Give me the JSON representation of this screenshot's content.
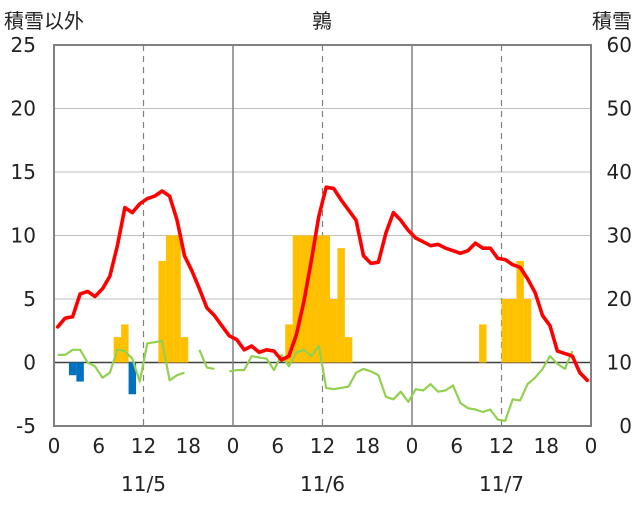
{
  "chart_data": {
    "type": "bar+line",
    "title": "鶉",
    "left_axis_label": "積雪以外",
    "right_axis_label": "積雪",
    "left_ylim": [
      -5,
      25
    ],
    "left_ticks": [
      -5,
      0,
      5,
      10,
      15,
      20,
      25
    ],
    "right_ylim": [
      0,
      60
    ],
    "right_ticks": [
      0,
      10,
      20,
      30,
      40,
      50,
      60
    ],
    "x_range_hours": [
      0,
      72
    ],
    "x_tick_labels": [
      "0",
      "6",
      "12",
      "18",
      "0",
      "6",
      "12",
      "18",
      "0",
      "6",
      "12",
      "18",
      "0"
    ],
    "x_tick_hours": [
      0,
      6,
      12,
      18,
      24,
      30,
      36,
      42,
      48,
      54,
      60,
      66,
      72
    ],
    "date_labels": [
      "11/5",
      "11/6",
      "11/7"
    ],
    "date_label_hours": [
      12,
      36,
      60
    ],
    "colors": {
      "precip_positive": "#FFC000",
      "precip_negative": "#0070C0",
      "red_line": "#FF0000",
      "green_line": "#92D050",
      "axis": "#808080"
    },
    "bars": [
      {
        "h": 2,
        "v": -1
      },
      {
        "h": 3,
        "v": -1.5
      },
      {
        "h": 8,
        "v": 2
      },
      {
        "h": 9,
        "v": 3
      },
      {
        "h": 10,
        "v": -2.5
      },
      {
        "h": 14,
        "v": 8
      },
      {
        "h": 15,
        "v": 10
      },
      {
        "h": 16,
        "v": 10
      },
      {
        "h": 17,
        "v": 2
      },
      {
        "h": 31,
        "v": 3
      },
      {
        "h": 32,
        "v": 10
      },
      {
        "h": 33,
        "v": 10
      },
      {
        "h": 34,
        "v": 10
      },
      {
        "h": 35,
        "v": 10
      },
      {
        "h": 36,
        "v": 10
      },
      {
        "h": 37,
        "v": 5
      },
      {
        "h": 38,
        "v": 9
      },
      {
        "h": 39,
        "v": 2
      },
      {
        "h": 57,
        "v": 3
      },
      {
        "h": 60,
        "v": 5
      },
      {
        "h": 61,
        "v": 5
      },
      {
        "h": 62,
        "v": 8
      },
      {
        "h": 63,
        "v": 5
      }
    ],
    "red_series": {
      "axis": "left",
      "points": [
        [
          0,
          2.8
        ],
        [
          1,
          3.5
        ],
        [
          2,
          3.6
        ],
        [
          3,
          5.4
        ],
        [
          4,
          5.6
        ],
        [
          5,
          5.2
        ],
        [
          6,
          5.8
        ],
        [
          7,
          6.8
        ],
        [
          8,
          9.2
        ],
        [
          9,
          12.2
        ],
        [
          10,
          11.8
        ],
        [
          11,
          12.5
        ],
        [
          12,
          12.9
        ],
        [
          13,
          13.1
        ],
        [
          14,
          13.5
        ],
        [
          15,
          13.1
        ],
        [
          16,
          11.2
        ],
        [
          17,
          8.4
        ],
        [
          18,
          7.2
        ],
        [
          19,
          5.8
        ],
        [
          20,
          4.3
        ],
        [
          21,
          3.7
        ],
        [
          22,
          2.9
        ],
        [
          23,
          2.1
        ],
        [
          24,
          1.8
        ],
        [
          25,
          1.0
        ],
        [
          26,
          1.3
        ],
        [
          27,
          0.8
        ],
        [
          28,
          1.0
        ],
        [
          29,
          0.9
        ],
        [
          30,
          0.2
        ],
        [
          31,
          0.5
        ],
        [
          32,
          2.2
        ],
        [
          33,
          4.8
        ],
        [
          34,
          8.0
        ],
        [
          35,
          11.5
        ],
        [
          36,
          13.8
        ],
        [
          37,
          13.7
        ],
        [
          38,
          12.8
        ],
        [
          39,
          12.0
        ],
        [
          40,
          11.2
        ],
        [
          41,
          8.4
        ],
        [
          42,
          7.8
        ],
        [
          43,
          7.9
        ],
        [
          44,
          10.2
        ],
        [
          45,
          11.8
        ],
        [
          46,
          11.2
        ],
        [
          47,
          10.4
        ],
        [
          48,
          9.8
        ],
        [
          49,
          9.5
        ],
        [
          50,
          9.2
        ],
        [
          51,
          9.3
        ],
        [
          52,
          9.0
        ],
        [
          53,
          8.8
        ],
        [
          54,
          8.6
        ],
        [
          55,
          8.8
        ],
        [
          56,
          9.4
        ],
        [
          57,
          9.0
        ],
        [
          58,
          9.0
        ],
        [
          59,
          8.2
        ],
        [
          60,
          8.1
        ],
        [
          61,
          7.7
        ],
        [
          62,
          7.5
        ],
        [
          63,
          6.6
        ],
        [
          64,
          5.5
        ],
        [
          65,
          3.7
        ],
        [
          66,
          2.9
        ],
        [
          67,
          0.9
        ],
        [
          68,
          0.7
        ],
        [
          69,
          0.5
        ],
        [
          70,
          -0.8
        ],
        [
          71,
          -1.4
        ]
      ]
    },
    "green_series": {
      "axis": "left",
      "segments": [
        [
          [
            0,
            0.6
          ],
          [
            1,
            0.6
          ],
          [
            2,
            1.0
          ],
          [
            3,
            1.0
          ],
          [
            4,
            0.0
          ],
          [
            5,
            -0.3
          ],
          [
            6,
            -1.2
          ],
          [
            7,
            -0.8
          ],
          [
            8,
            1.0
          ],
          [
            9,
            0.9
          ],
          [
            10,
            0.3
          ],
          [
            11,
            -1.5
          ],
          [
            12,
            1.5
          ],
          [
            13,
            1.6
          ],
          [
            14,
            1.7
          ],
          [
            15,
            -1.4
          ],
          [
            16,
            -1.0
          ],
          [
            17,
            -0.8
          ]
        ],
        [
          [
            19,
            1.0
          ],
          [
            20,
            -0.4
          ],
          [
            21,
            -0.5
          ]
        ],
        [
          [
            23,
            -0.7
          ],
          [
            24,
            -0.6
          ],
          [
            25,
            -0.6
          ],
          [
            26,
            0.5
          ],
          [
            27,
            0.4
          ],
          [
            28,
            0.3
          ],
          [
            29,
            -0.6
          ],
          [
            30,
            0.6
          ],
          [
            31,
            -0.3
          ],
          [
            32,
            0.8
          ],
          [
            33,
            1.0
          ],
          [
            34,
            0.5
          ],
          [
            35,
            1.3
          ],
          [
            36,
            -2.0
          ],
          [
            37,
            -2.1
          ],
          [
            38,
            -2.0
          ],
          [
            39,
            -1.9
          ],
          [
            40,
            -0.8
          ],
          [
            41,
            -0.5
          ],
          [
            42,
            -0.7
          ],
          [
            43,
            -1.0
          ],
          [
            44,
            -2.7
          ],
          [
            45,
            -2.9
          ],
          [
            46,
            -2.3
          ],
          [
            47,
            -3.1
          ],
          [
            48,
            -2.1
          ],
          [
            49,
            -2.2
          ],
          [
            50,
            -1.7
          ],
          [
            51,
            -2.3
          ],
          [
            52,
            -2.2
          ],
          [
            53,
            -1.8
          ],
          [
            54,
            -3.2
          ],
          [
            55,
            -3.6
          ],
          [
            56,
            -3.7
          ],
          [
            57,
            -3.9
          ],
          [
            58,
            -3.7
          ],
          [
            59,
            -4.5
          ],
          [
            60,
            -4.6
          ],
          [
            61,
            -2.9
          ],
          [
            62,
            -3.0
          ],
          [
            63,
            -1.7
          ],
          [
            64,
            -1.2
          ],
          [
            65,
            -0.5
          ],
          [
            66,
            0.5
          ],
          [
            67,
            -0.1
          ],
          [
            68,
            -0.5
          ],
          [
            69,
            0.9
          ]
        ]
      ]
    }
  }
}
